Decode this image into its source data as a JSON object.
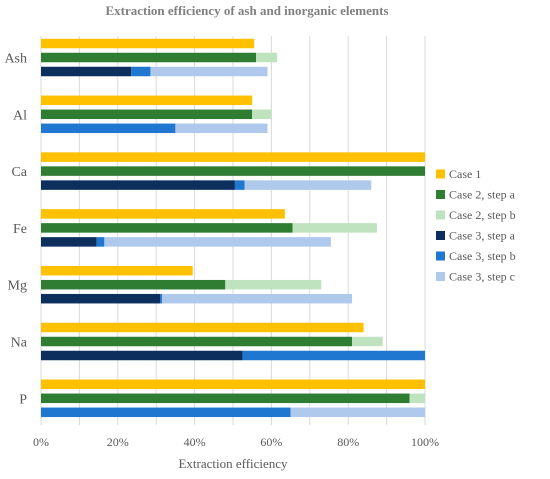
{
  "chart_data": {
    "type": "bar",
    "orientation": "horizontal",
    "title": "Extraction efficiency of ash and inorganic elements",
    "xlabel": "Extraction efficiency",
    "ylabel": "",
    "xlim": [
      0,
      100
    ],
    "x_ticks": [
      "0%",
      "20%",
      "40%",
      "60%",
      "80%",
      "100%"
    ],
    "grid": "vertical",
    "legend_position": "right",
    "categories": [
      "Ash",
      "Al",
      "Ca",
      "Fe",
      "Mg",
      "Na",
      "P"
    ],
    "rows": [
      {
        "name": "Case 1",
        "segments": [
          {
            "name": "Case 1",
            "values": [
              55.5,
              55,
              100,
              63.5,
              39.5,
              84,
              100
            ]
          }
        ]
      },
      {
        "name": "Case 2",
        "segments": [
          {
            "name": "Case 2, step a",
            "values": [
              56,
              55,
              100,
              65.5,
              48,
              81,
              96
            ]
          },
          {
            "name": "Case 2, step b",
            "values": [
              5.5,
              5,
              0,
              22,
              25,
              8,
              4
            ]
          }
        ]
      },
      {
        "name": "Case 3",
        "segments": [
          {
            "name": "Case 3, step a",
            "values": [
              23.5,
              0,
              50.5,
              14.5,
              31,
              52.5,
              0
            ]
          },
          {
            "name": "Case 3, step b",
            "values": [
              5,
              35,
              2.5,
              2,
              0.5,
              47.5,
              65
            ]
          },
          {
            "name": "Case 3, step c",
            "values": [
              30.5,
              24,
              33,
              59,
              49.5,
              0,
              35
            ]
          }
        ]
      }
    ],
    "legend": [
      {
        "name": "Case 1",
        "color": "#FFC000"
      },
      {
        "name": "Case 2, step a",
        "color": "#2E7D32"
      },
      {
        "name": "Case 2, step b",
        "color": "#BFE3BF"
      },
      {
        "name": "Case 3, step a",
        "color": "#0D2F5E"
      },
      {
        "name": "Case 3, step b",
        "color": "#1F77D0"
      },
      {
        "name": "Case 3, step c",
        "color": "#AEC9EC"
      }
    ]
  }
}
